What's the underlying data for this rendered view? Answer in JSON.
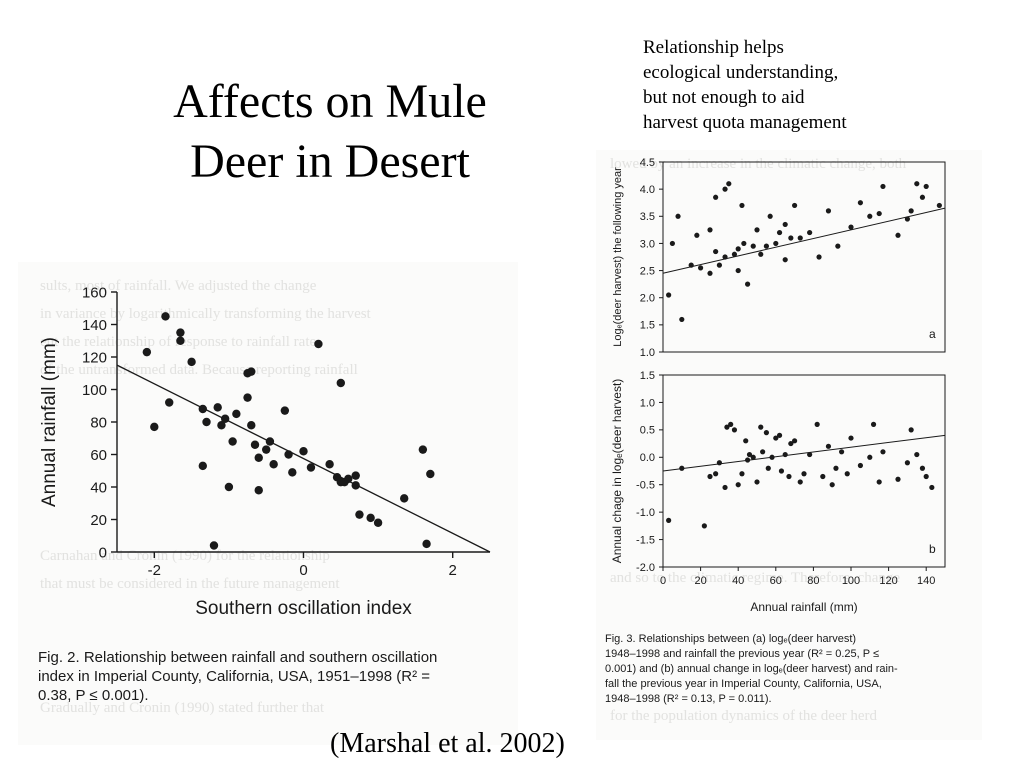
{
  "slide": {
    "title_lines": [
      "Affects on Mule",
      "Deer in Desert"
    ],
    "note_lines": [
      "Relationship helps",
      "ecological understanding,",
      "but not enough to aid",
      "harvest quota management"
    ],
    "citation": "(Marshal et al. 2002)"
  },
  "fig2": {
    "caption_lines": [
      "Fig. 2. Relationship between rainfall and southern oscillation",
      "index in Imperial County, California, USA, 1951–1998 (R² =",
      "0.38, P ≤ 0.001)."
    ]
  },
  "fig3": {
    "caption_lines": [
      "Fig. 3. Relationships between (a) logₑ(deer harvest)",
      "1948–1998 and rainfall the previous year (R² = 0.25, P ≤",
      "0.001) and (b) annual change in logₑ(deer harvest) and rain-",
      "fall the previous year in Imperial County, California, USA,",
      "1948–1998 (R² = 0.13, P = 0.011)."
    ]
  },
  "colors": {
    "ink": "#1a1a1a",
    "scan_background": "#fbfbfa",
    "ghost_text": "#e2e2e0"
  },
  "chart_data": [
    {
      "type": "scatter",
      "title": "",
      "xlabel": "Southern oscillation index",
      "ylabel": "Annual rainfall (mm)",
      "xlim": [
        -2.5,
        2.5
      ],
      "ylim": [
        0,
        160
      ],
      "xticks": [
        -2,
        0,
        2
      ],
      "yticks": [
        0,
        20,
        40,
        60,
        80,
        100,
        120,
        140,
        160
      ],
      "xtick_labels": [
        "-2",
        "0",
        "2"
      ],
      "ytick_labels": [
        "0",
        "20",
        "40",
        "60",
        "80",
        "100",
        "120",
        "140",
        "160"
      ],
      "grid": false,
      "points": [
        [
          -2.1,
          123
        ],
        [
          -2.0,
          77
        ],
        [
          -1.85,
          145
        ],
        [
          -1.8,
          92
        ],
        [
          -1.65,
          130
        ],
        [
          -1.65,
          135
        ],
        [
          -1.5,
          117
        ],
        [
          -1.35,
          88
        ],
        [
          -1.35,
          53
        ],
        [
          -1.3,
          80
        ],
        [
          -1.2,
          4
        ],
        [
          -1.15,
          89
        ],
        [
          -1.1,
          78
        ],
        [
          -1.05,
          82
        ],
        [
          -1.0,
          40
        ],
        [
          -0.95,
          68
        ],
        [
          -0.9,
          85
        ],
        [
          -0.75,
          95
        ],
        [
          -0.75,
          110
        ],
        [
          -0.7,
          111
        ],
        [
          -0.7,
          78
        ],
        [
          -0.65,
          66
        ],
        [
          -0.6,
          58
        ],
        [
          -0.6,
          38
        ],
        [
          -0.5,
          63
        ],
        [
          -0.45,
          68
        ],
        [
          -0.4,
          54
        ],
        [
          -0.25,
          87
        ],
        [
          -0.2,
          60
        ],
        [
          -0.15,
          49
        ],
        [
          0.0,
          62
        ],
        [
          0.1,
          52
        ],
        [
          0.2,
          128
        ],
        [
          0.35,
          54
        ],
        [
          0.45,
          46
        ],
        [
          0.5,
          104
        ],
        [
          0.5,
          43
        ],
        [
          0.55,
          43
        ],
        [
          0.6,
          45
        ],
        [
          0.7,
          47
        ],
        [
          0.7,
          41
        ],
        [
          0.75,
          23
        ],
        [
          0.9,
          21
        ],
        [
          1.0,
          18
        ],
        [
          1.35,
          33
        ],
        [
          1.6,
          63
        ],
        [
          1.65,
          5
        ],
        [
          1.7,
          48
        ]
      ],
      "trendline": {
        "x": [
          -2.5,
          2.5
        ],
        "y": [
          115,
          0
        ]
      }
    },
    {
      "type": "scatter",
      "title": "",
      "xlabel": "",
      "ylabel": "Logₑ(deer harvest) the following year",
      "panel_label": "a",
      "xlim": [
        0,
        150
      ],
      "ylim": [
        1.0,
        4.5
      ],
      "yticks": [
        1.0,
        1.5,
        2.0,
        2.5,
        3.0,
        3.5,
        4.0,
        4.5
      ],
      "ytick_labels": [
        "1.0",
        "1.5",
        "2.0",
        "2.5",
        "3.0",
        "3.5",
        "4.0",
        "4.5"
      ],
      "grid": false,
      "points": [
        [
          3,
          2.05
        ],
        [
          5,
          3.0
        ],
        [
          8,
          3.5
        ],
        [
          10,
          1.6
        ],
        [
          15,
          2.6
        ],
        [
          18,
          3.15
        ],
        [
          20,
          2.55
        ],
        [
          25,
          3.25
        ],
        [
          25,
          2.45
        ],
        [
          28,
          2.85
        ],
        [
          28,
          3.85
        ],
        [
          30,
          2.6
        ],
        [
          33,
          2.75
        ],
        [
          33,
          4.0
        ],
        [
          35,
          4.1
        ],
        [
          38,
          2.8
        ],
        [
          40,
          2.9
        ],
        [
          40,
          2.5
        ],
        [
          42,
          3.7
        ],
        [
          43,
          3.0
        ],
        [
          45,
          2.25
        ],
        [
          48,
          2.95
        ],
        [
          50,
          3.25
        ],
        [
          52,
          2.8
        ],
        [
          55,
          2.95
        ],
        [
          57,
          3.5
        ],
        [
          60,
          3.0
        ],
        [
          62,
          3.2
        ],
        [
          65,
          3.35
        ],
        [
          65,
          2.7
        ],
        [
          68,
          3.1
        ],
        [
          70,
          3.7
        ],
        [
          73,
          3.1
        ],
        [
          78,
          3.2
        ],
        [
          83,
          2.75
        ],
        [
          88,
          3.6
        ],
        [
          93,
          2.95
        ],
        [
          100,
          3.3
        ],
        [
          105,
          3.75
        ],
        [
          110,
          3.5
        ],
        [
          115,
          3.55
        ],
        [
          117,
          4.05
        ],
        [
          125,
          3.15
        ],
        [
          130,
          3.45
        ],
        [
          132,
          3.6
        ],
        [
          135,
          4.1
        ],
        [
          138,
          3.85
        ],
        [
          140,
          4.05
        ],
        [
          147,
          3.7
        ]
      ],
      "trendline": {
        "x": [
          0,
          150
        ],
        "y": [
          2.45,
          3.65
        ]
      }
    },
    {
      "type": "scatter",
      "title": "",
      "xlabel": "Annual rainfall (mm)",
      "ylabel": "Annual chage in logₑ(deer harvest)",
      "panel_label": "b",
      "xlim": [
        0,
        150
      ],
      "ylim": [
        -2.0,
        1.5
      ],
      "xticks": [
        0,
        20,
        40,
        60,
        80,
        100,
        120,
        140
      ],
      "xtick_labels": [
        "0",
        "20",
        "40",
        "60",
        "80",
        "100",
        "120",
        "140"
      ],
      "yticks": [
        -2.0,
        -1.5,
        -1.0,
        -0.5,
        0.0,
        0.5,
        1.0,
        1.5
      ],
      "ytick_labels": [
        "-2.0",
        "-1.5",
        "-1.0",
        "-0.5",
        "0.0",
        "0.5",
        "1.0",
        "1.5"
      ],
      "grid": false,
      "points": [
        [
          3,
          -1.15
        ],
        [
          10,
          -0.2
        ],
        [
          22,
          -1.25
        ],
        [
          25,
          -0.35
        ],
        [
          28,
          -0.3
        ],
        [
          30,
          -0.1
        ],
        [
          33,
          -0.55
        ],
        [
          34,
          0.55
        ],
        [
          36,
          0.6
        ],
        [
          38,
          0.5
        ],
        [
          40,
          -0.5
        ],
        [
          42,
          -0.3
        ],
        [
          44,
          0.3
        ],
        [
          45,
          -0.05
        ],
        [
          46,
          0.05
        ],
        [
          48,
          0.0
        ],
        [
          50,
          -0.45
        ],
        [
          52,
          0.55
        ],
        [
          53,
          0.1
        ],
        [
          55,
          0.45
        ],
        [
          56,
          -0.2
        ],
        [
          58,
          0.0
        ],
        [
          60,
          0.35
        ],
        [
          62,
          0.4
        ],
        [
          63,
          -0.25
        ],
        [
          65,
          0.05
        ],
        [
          67,
          -0.35
        ],
        [
          68,
          0.25
        ],
        [
          70,
          0.3
        ],
        [
          73,
          -0.45
        ],
        [
          75,
          -0.3
        ],
        [
          78,
          0.05
        ],
        [
          82,
          0.6
        ],
        [
          85,
          -0.35
        ],
        [
          88,
          0.2
        ],
        [
          90,
          -0.5
        ],
        [
          92,
          -0.2
        ],
        [
          95,
          0.1
        ],
        [
          98,
          -0.3
        ],
        [
          100,
          0.35
        ],
        [
          105,
          -0.15
        ],
        [
          110,
          0.0
        ],
        [
          112,
          0.6
        ],
        [
          115,
          -0.45
        ],
        [
          117,
          0.1
        ],
        [
          125,
          -0.4
        ],
        [
          130,
          -0.1
        ],
        [
          132,
          0.5
        ],
        [
          135,
          0.05
        ],
        [
          138,
          -0.2
        ],
        [
          140,
          -0.35
        ],
        [
          143,
          -0.55
        ]
      ],
      "trendline": {
        "x": [
          0,
          150
        ],
        "y": [
          -0.25,
          0.4
        ]
      }
    }
  ]
}
